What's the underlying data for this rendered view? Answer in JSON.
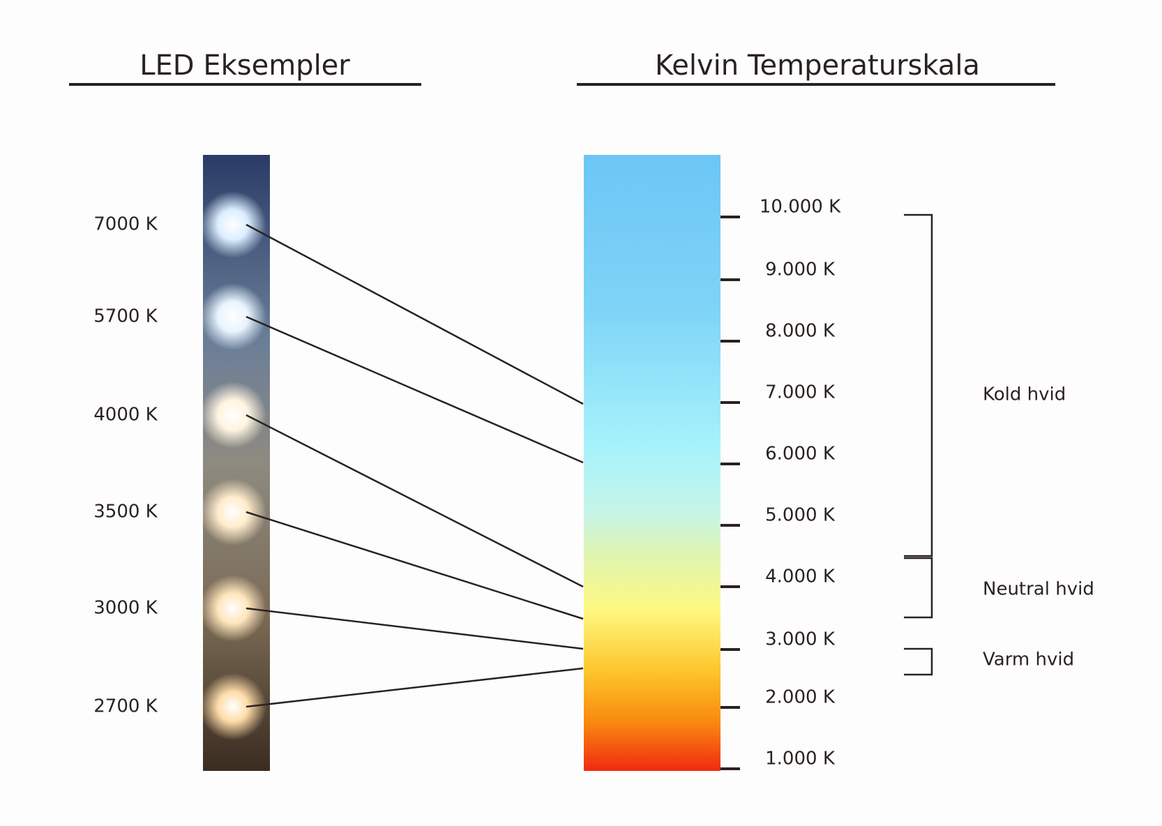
{
  "led": {
    "title": "LED Eksempler",
    "labels": [
      "7000 K",
      "5700 K",
      "4000 K",
      "3500 K",
      "3000 K",
      "2700 K"
    ]
  },
  "scale": {
    "title": "Kelvin Temperaturskala",
    "ticks": [
      "10.000 K",
      "9.000 K",
      "8.000 K",
      "7.000 K",
      "6.000 K",
      "5.000 K",
      "4.000 K",
      "3.000 K",
      "2.000 K",
      "1.000 K"
    ]
  },
  "groups": [
    "Kold hvid",
    "Neutral hvid",
    "Varm hvid"
  ]
}
